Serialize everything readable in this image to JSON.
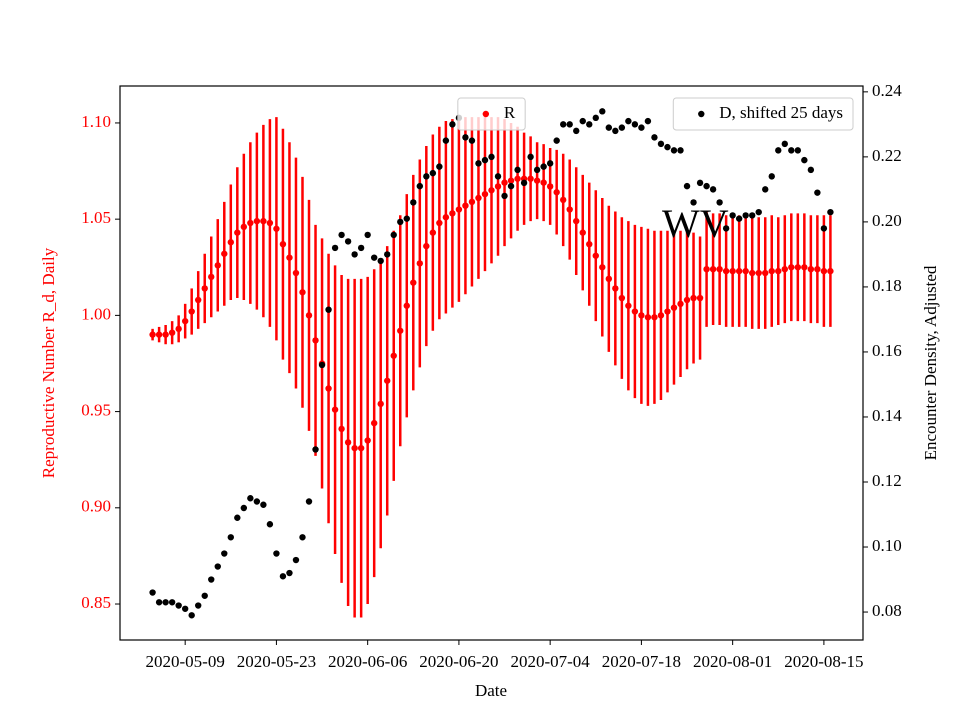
{
  "chart_data": {
    "type": "errorbar_dual",
    "xlabel": "Date",
    "ylabel": "Reproductive Number R_d, Daily",
    "y2label": "Encounter Density, Adjusted",
    "annotation": "WV",
    "x_start": "2020-05-04",
    "x": [
      "2020-05-04",
      "2020-05-05",
      "2020-05-06",
      "2020-05-07",
      "2020-05-08",
      "2020-05-09",
      "2020-05-10",
      "2020-05-11",
      "2020-05-12",
      "2020-05-13",
      "2020-05-14",
      "2020-05-15",
      "2020-05-16",
      "2020-05-17",
      "2020-05-18",
      "2020-05-19",
      "2020-05-20",
      "2020-05-21",
      "2020-05-22",
      "2020-05-23",
      "2020-05-24",
      "2020-05-25",
      "2020-05-26",
      "2020-05-27",
      "2020-05-28",
      "2020-05-29",
      "2020-05-30",
      "2020-05-31",
      "2020-06-01",
      "2020-06-02",
      "2020-06-03",
      "2020-06-04",
      "2020-06-05",
      "2020-06-06",
      "2020-06-07",
      "2020-06-08",
      "2020-06-09",
      "2020-06-10",
      "2020-06-11",
      "2020-06-12",
      "2020-06-13",
      "2020-06-14",
      "2020-06-15",
      "2020-06-16",
      "2020-06-17",
      "2020-06-18",
      "2020-06-19",
      "2020-06-20",
      "2020-06-21",
      "2020-06-22",
      "2020-06-23",
      "2020-06-24",
      "2020-06-25",
      "2020-06-26",
      "2020-06-27",
      "2020-06-28",
      "2020-06-29",
      "2020-06-30",
      "2020-07-01",
      "2020-07-02",
      "2020-07-03",
      "2020-07-04",
      "2020-07-05",
      "2020-07-06",
      "2020-07-07",
      "2020-07-08",
      "2020-07-09",
      "2020-07-10",
      "2020-07-11",
      "2020-07-12",
      "2020-07-13",
      "2020-07-14",
      "2020-07-15",
      "2020-07-16",
      "2020-07-17",
      "2020-07-18",
      "2020-07-19",
      "2020-07-20",
      "2020-07-21",
      "2020-07-22",
      "2020-07-23",
      "2020-07-24",
      "2020-07-25",
      "2020-07-26",
      "2020-07-27",
      "2020-07-28",
      "2020-07-29",
      "2020-07-30",
      "2020-07-31",
      "2020-08-01",
      "2020-08-02",
      "2020-08-03",
      "2020-08-04",
      "2020-08-05",
      "2020-08-06",
      "2020-08-07",
      "2020-08-08",
      "2020-08-09",
      "2020-08-10",
      "2020-08-11",
      "2020-08-12",
      "2020-08-13",
      "2020-08-14",
      "2020-08-15",
      "2020-08-16"
    ],
    "series": [
      {
        "name": "R",
        "color": "#ff0000",
        "axis": "y",
        "legend_loc": "upper center",
        "values": [
          0.99,
          0.99,
          0.99,
          0.991,
          0.993,
          0.997,
          1.002,
          1.008,
          1.014,
          1.02,
          1.026,
          1.032,
          1.038,
          1.043,
          1.046,
          1.048,
          1.049,
          1.049,
          1.048,
          1.045,
          1.037,
          1.03,
          1.022,
          1.012,
          1.0,
          0.987,
          0.975,
          0.962,
          0.951,
          0.941,
          0.934,
          0.931,
          0.931,
          0.935,
          0.944,
          0.954,
          0.966,
          0.979,
          0.992,
          1.005,
          1.017,
          1.027,
          1.036,
          1.043,
          1.048,
          1.051,
          1.053,
          1.055,
          1.057,
          1.059,
          1.061,
          1.063,
          1.065,
          1.067,
          1.069,
          1.07,
          1.071,
          1.071,
          1.071,
          1.07,
          1.069,
          1.067,
          1.064,
          1.06,
          1.055,
          1.049,
          1.043,
          1.037,
          1.031,
          1.025,
          1.019,
          1.014,
          1.009,
          1.005,
          1.002,
          1.0,
          0.999,
          0.999,
          1.0,
          1.002,
          1.004,
          1.006,
          1.008,
          1.009,
          1.009,
          1.024,
          1.024,
          1.024,
          1.023,
          1.023,
          1.023,
          1.023,
          1.022,
          1.022,
          1.022,
          1.023,
          1.023,
          1.024,
          1.025,
          1.025,
          1.025,
          1.024,
          1.024,
          1.023,
          1.023
        ],
        "errors": [
          0.003,
          0.004,
          0.005,
          0.006,
          0.007,
          0.009,
          0.012,
          0.015,
          0.018,
          0.021,
          0.024,
          0.027,
          0.03,
          0.034,
          0.038,
          0.042,
          0.046,
          0.05,
          0.054,
          0.058,
          0.06,
          0.06,
          0.06,
          0.06,
          0.06,
          0.06,
          0.065,
          0.07,
          0.075,
          0.08,
          0.085,
          0.088,
          0.088,
          0.085,
          0.08,
          0.075,
          0.07,
          0.065,
          0.06,
          0.058,
          0.056,
          0.054,
          0.052,
          0.051,
          0.05,
          0.05,
          0.049,
          0.048,
          0.046,
          0.044,
          0.042,
          0.04,
          0.038,
          0.036,
          0.033,
          0.03,
          0.027,
          0.024,
          0.022,
          0.02,
          0.02,
          0.02,
          0.022,
          0.024,
          0.026,
          0.028,
          0.03,
          0.032,
          0.034,
          0.036,
          0.038,
          0.04,
          0.042,
          0.044,
          0.045,
          0.046,
          0.046,
          0.045,
          0.044,
          0.042,
          0.04,
          0.038,
          0.036,
          0.034,
          0.032,
          0.03,
          0.029,
          0.029,
          0.029,
          0.029,
          0.029,
          0.029,
          0.029,
          0.029,
          0.029,
          0.029,
          0.028,
          0.028,
          0.028,
          0.028,
          0.028,
          0.028,
          0.028,
          0.029,
          0.029
        ]
      },
      {
        "name": "D, shifted 25 days",
        "color": "#000000",
        "axis": "y2",
        "legend_loc": "upper right",
        "values": [
          0.086,
          0.083,
          0.083,
          0.083,
          0.082,
          0.081,
          0.079,
          0.082,
          0.085,
          0.09,
          0.094,
          0.098,
          0.103,
          0.109,
          0.112,
          0.115,
          0.114,
          0.113,
          0.107,
          0.098,
          0.091,
          0.092,
          0.096,
          0.103,
          0.114,
          0.13,
          0.156,
          0.173,
          0.192,
          0.196,
          0.194,
          0.19,
          0.192,
          0.196,
          0.189,
          0.188,
          0.19,
          0.196,
          0.2,
          0.201,
          0.206,
          0.211,
          0.214,
          0.215,
          0.217,
          0.225,
          0.23,
          0.232,
          0.226,
          0.225,
          0.218,
          0.219,
          0.22,
          0.214,
          0.208,
          0.211,
          0.216,
          0.212,
          0.22,
          0.216,
          0.217,
          0.218,
          0.225,
          0.23,
          0.23,
          0.228,
          0.231,
          0.23,
          0.232,
          0.234,
          0.229,
          0.228,
          0.229,
          0.231,
          0.23,
          0.229,
          0.231,
          0.226,
          0.224,
          0.223,
          0.222,
          0.222,
          0.211,
          0.206,
          0.212,
          0.211,
          0.21,
          0.206,
          0.198,
          0.202,
          0.201,
          0.202,
          0.202,
          0.203,
          0.21,
          0.214,
          0.222,
          0.224,
          0.222,
          0.222,
          0.219,
          0.216,
          0.209,
          0.198,
          0.203
        ]
      }
    ],
    "xlim": [
      "2020-04-29",
      "2020-08-21"
    ],
    "xticks": [
      "2020-05-09",
      "2020-05-23",
      "2020-06-06",
      "2020-06-20",
      "2020-07-04",
      "2020-07-18",
      "2020-08-01",
      "2020-08-15"
    ],
    "ylim": [
      0.8313,
      1.1192
    ],
    "yticks": [
      0.85,
      {
        "value": 0.9,
        "label": "0.90"
      },
      0.95,
      {
        "value": 1.0,
        "label": "1.00"
      },
      1.05,
      {
        "value": 1.1,
        "label": "1.10"
      }
    ],
    "y2lim": [
      0.0714,
      0.2418
    ],
    "y2ticks": [
      0.08,
      {
        "value": 0.1,
        "label": "0.10"
      },
      0.12,
      0.14,
      0.16,
      0.18,
      {
        "value": 0.2,
        "label": "0.20"
      },
      0.22,
      0.24
    ],
    "ylabel_color": "#ff0000",
    "grid": false
  }
}
